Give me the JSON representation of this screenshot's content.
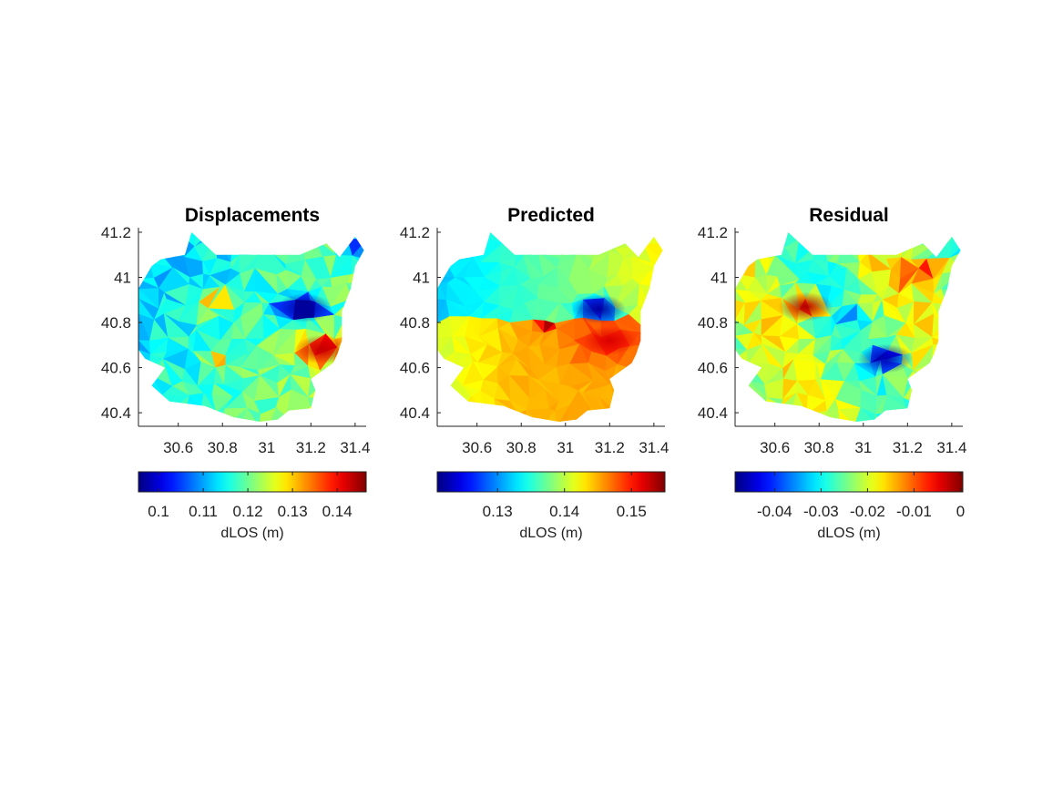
{
  "chart_data": [
    {
      "type": "heatmap",
      "title": "Displacements",
      "x_ticks": [
        "30.6",
        "30.8",
        "31",
        "31.2",
        "31.4"
      ],
      "y_ticks": [
        "41.2",
        "41",
        "40.8",
        "40.6",
        "40.4"
      ],
      "xlim": [
        30.42,
        31.45
      ],
      "ylim": [
        40.34,
        41.22
      ],
      "colorbar": {
        "label": "dLOS (m)",
        "ticks": [
          "0.1",
          "0.11",
          "0.12",
          "0.13",
          "0.14"
        ],
        "range": [
          0.0955,
          0.1465
        ]
      },
      "features": [
        {
          "name": "subsidence-low",
          "lon": 31.17,
          "lat": 40.865,
          "value": 0.097
        },
        {
          "name": "uplift-high",
          "lon": 31.25,
          "lat": 40.68,
          "value": 0.143
        }
      ]
    },
    {
      "type": "heatmap",
      "title": "Predicted",
      "x_ticks": [
        "30.6",
        "30.8",
        "31",
        "31.2",
        "31.4"
      ],
      "y_ticks": [
        "41.2",
        "41",
        "40.8",
        "40.6",
        "40.4"
      ],
      "xlim": [
        30.42,
        31.45
      ],
      "ylim": [
        40.34,
        41.22
      ],
      "colorbar": {
        "label": "dLOS (m)",
        "ticks": [
          "0.13",
          "0.14",
          "0.15"
        ],
        "range": [
          0.121,
          0.155
        ]
      },
      "features": [
        {
          "name": "subsidence-low",
          "lon": 31.15,
          "lat": 40.86,
          "value": 0.122
        },
        {
          "name": "uplift-high",
          "lon": 31.2,
          "lat": 40.72,
          "value": 0.152
        }
      ]
    },
    {
      "type": "heatmap",
      "title": "Residual",
      "x_ticks": [
        "30.6",
        "30.8",
        "31",
        "31.2",
        "31.4"
      ],
      "y_ticks": [
        "41.2",
        "41",
        "40.8",
        "40.6",
        "40.4"
      ],
      "xlim": [
        30.42,
        31.45
      ],
      "ylim": [
        40.34,
        41.22
      ],
      "colorbar": {
        "label": "dLOS (m)",
        "ticks": [
          "-0.04",
          "-0.03",
          "-0.02",
          "-0.01",
          "0"
        ],
        "range": [
          -0.0485,
          0.0005
        ]
      },
      "features": [
        {
          "name": "residual-high",
          "lon": 30.74,
          "lat": 40.87,
          "value": -0.002
        },
        {
          "name": "residual-low",
          "lon": 31.1,
          "lat": 40.64,
          "value": -0.046
        }
      ]
    }
  ],
  "colormap": "jet",
  "colors": {
    "axis": "#222222",
    "background": "#ffffff"
  }
}
